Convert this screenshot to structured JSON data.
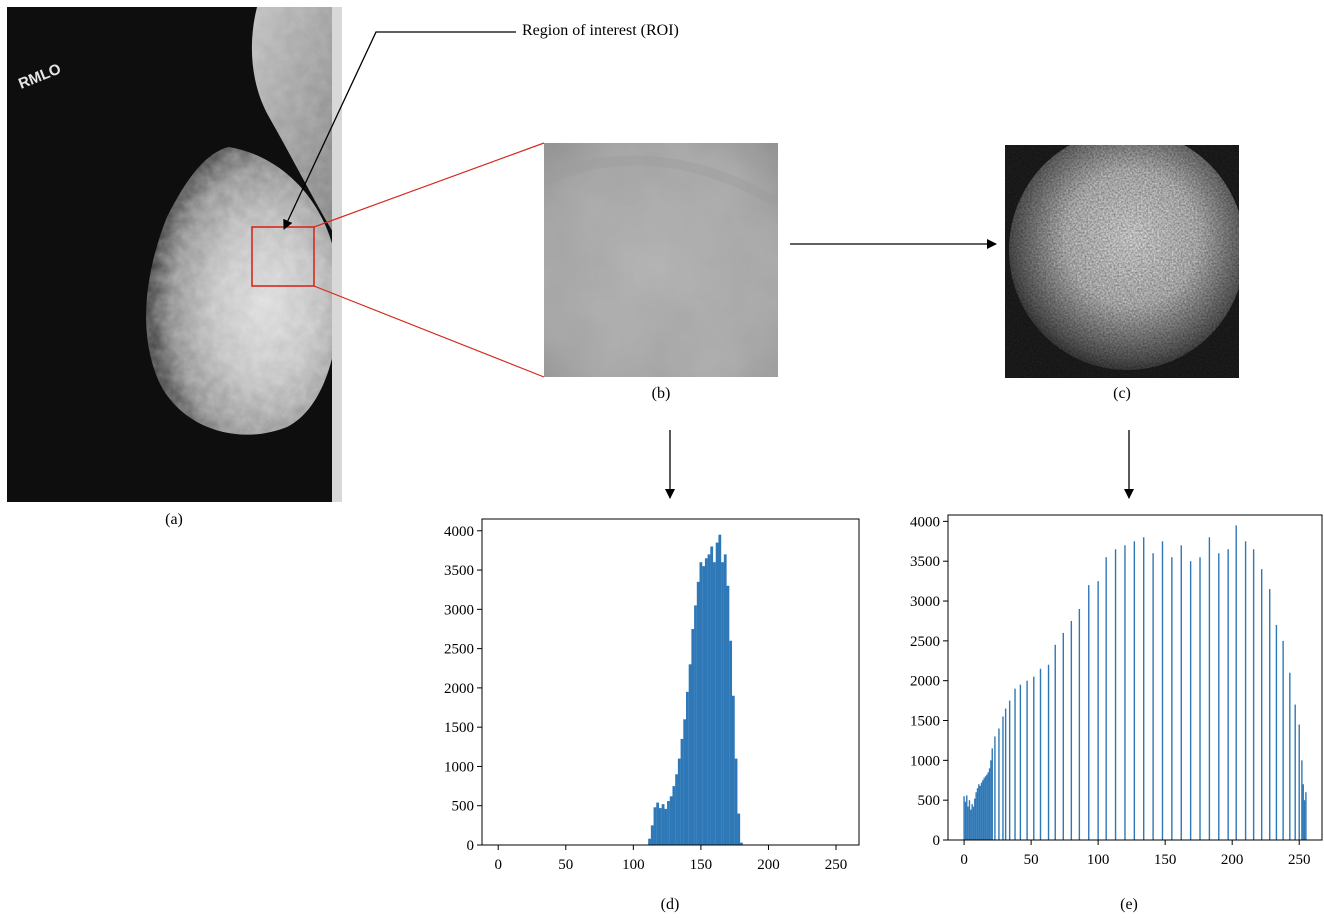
{
  "figure": {
    "roi_label": "Region of interest (ROI)",
    "mammogram_marker": "RMLO",
    "captions": {
      "a": "(a)",
      "b": "(b)",
      "c": "(c)",
      "d": "(d)",
      "e": "(e)"
    }
  },
  "colors": {
    "bar": "#2f78b7",
    "roi_box": "#d42a1e",
    "arrow": "#000000"
  },
  "chart_data": [
    {
      "type": "bar",
      "title": "",
      "xlabel": "",
      "ylabel": "",
      "xlim": [
        -12,
        267
      ],
      "ylim": [
        0,
        4150
      ],
      "xticks": [
        0,
        50,
        100,
        150,
        200,
        250
      ],
      "yticks": [
        0,
        500,
        1000,
        1500,
        2000,
        2500,
        3000,
        3500,
        4000
      ],
      "series": [
        {
          "x": [
            112,
            114,
            116,
            118,
            120,
            122,
            124,
            126,
            128,
            130,
            132,
            134,
            136,
            138,
            140,
            142,
            144,
            146,
            148,
            150,
            152,
            154,
            156,
            158,
            160,
            162,
            164,
            166,
            168,
            170,
            172,
            174,
            176,
            178,
            180
          ],
          "values": [
            80,
            250,
            480,
            540,
            470,
            520,
            460,
            560,
            620,
            750,
            900,
            1100,
            1350,
            1600,
            1950,
            2300,
            2750,
            3050,
            3350,
            3600,
            3550,
            3650,
            3700,
            3800,
            3600,
            3850,
            3950,
            3600,
            3700,
            3300,
            2600,
            1900,
            1100,
            400,
            30
          ]
        }
      ]
    },
    {
      "type": "bar",
      "title": "",
      "xlabel": "",
      "ylabel": "",
      "xlim": [
        -12,
        267
      ],
      "ylim": [
        0,
        4080
      ],
      "xticks": [
        0,
        50,
        100,
        150,
        200,
        250
      ],
      "yticks": [
        0,
        500,
        1000,
        1500,
        2000,
        2500,
        3000,
        3500,
        4000
      ],
      "series": [
        {
          "x": [
            0,
            1,
            2,
            3,
            4,
            5,
            6,
            7,
            8,
            9,
            10,
            11,
            12,
            13,
            14,
            15,
            16,
            17,
            18,
            19,
            20,
            21,
            23,
            26,
            29,
            31,
            34,
            38,
            42,
            47,
            52,
            57,
            63,
            68,
            74,
            80,
            86,
            93,
            100,
            106,
            113,
            120,
            127,
            134,
            141,
            148,
            155,
            162,
            169,
            176,
            183,
            190,
            197,
            203,
            210,
            216,
            222,
            228,
            233,
            238,
            243,
            247,
            250,
            252,
            253,
            254,
            255
          ],
          "values": [
            550,
            480,
            560,
            420,
            500,
            380,
            450,
            420,
            520,
            600,
            650,
            700,
            680,
            720,
            750,
            780,
            800,
            820,
            850,
            900,
            1000,
            1150,
            1300,
            1400,
            1550,
            1650,
            1750,
            1900,
            1950,
            2000,
            2050,
            2150,
            2200,
            2450,
            2600,
            2750,
            2900,
            3200,
            3250,
            3550,
            3650,
            3700,
            3750,
            3800,
            3600,
            3750,
            3550,
            3700,
            3500,
            3550,
            3800,
            3600,
            3650,
            3950,
            3750,
            3650,
            3400,
            3150,
            2700,
            2500,
            2100,
            1700,
            1450,
            1000,
            700,
            500,
            600
          ]
        }
      ]
    }
  ]
}
